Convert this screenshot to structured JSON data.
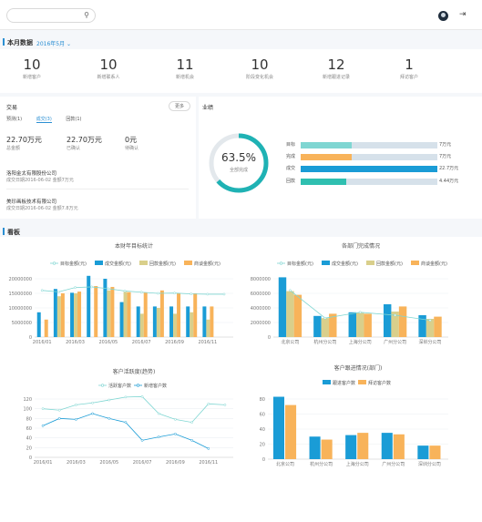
{
  "colors": {
    "blue": "#1a9cd6",
    "teal": "#2fbfb0",
    "orange": "#f8b35a",
    "khaki": "#d9cf8b",
    "lightteal": "#7fd6d2",
    "green": "#61c3a8",
    "grey": "#d6e1ea"
  },
  "header": {
    "search_placeholder": ""
  },
  "month": {
    "title": "本月数据",
    "selected": "2016年5月"
  },
  "stats": [
    {
      "value": "10",
      "label": "新增客户"
    },
    {
      "value": "10",
      "label": "新增联系人"
    },
    {
      "value": "11",
      "label": "新增机会"
    },
    {
      "value": "10",
      "label": "阶段变化机会"
    },
    {
      "value": "12",
      "label": "新增跟进记录"
    },
    {
      "value": "1",
      "label": "拜访客户"
    }
  ],
  "deals": {
    "title": "交易",
    "more": "更多",
    "tabs": [
      "预测(1)",
      "成交(3)",
      "回款(1)"
    ],
    "kpis": [
      {
        "value": "22.70万元",
        "label": "总金额"
      },
      {
        "value": "22.70万元",
        "label": "已确认"
      },
      {
        "value": "0元",
        "label": "待确认"
      }
    ],
    "items": [
      {
        "name": "洛阳金太有限股份公司",
        "detail": "成交日期2016-06-02 金额7万元"
      },
      {
        "name": "美珍画板技术有限公司",
        "detail": "成交日期2016-06-02 金额7.8万元"
      }
    ]
  },
  "goal": {
    "title": "业绩",
    "percent": "63.5%",
    "percent_label": "全部完成",
    "ratio": 0.635,
    "rows": [
      {
        "name": "目标",
        "value": "7万元",
        "ratio": 0.37,
        "color": "#7fd6d2"
      },
      {
        "name": "完成",
        "value": "7万元",
        "ratio": 0.37,
        "color": "#f8b35a"
      },
      {
        "name": "成交",
        "value": "22.7万元",
        "ratio": 1.0,
        "color": "#1a9cd6"
      },
      {
        "name": "回款",
        "value": "4.44万元",
        "ratio": 0.33,
        "color": "#2fbfb0"
      }
    ]
  },
  "board": {
    "title": "看板"
  },
  "chart_data": [
    {
      "type": "bar",
      "title": "本财年目标统计",
      "legend": [
        "目标金额(元)",
        "成交金额(元)",
        "回款金额(元)",
        "商谈金额(元)"
      ],
      "categories": [
        "2016/01",
        "2016/02",
        "2016/03",
        "2016/04",
        "2016/05",
        "2016/06",
        "2016/07",
        "2016/08",
        "2016/09",
        "2016/10",
        "2016/11",
        "2016/12"
      ],
      "xticks": [
        "2016/01",
        "2016/03",
        "2016/05",
        "2016/07",
        "2016/09",
        "2016/11"
      ],
      "yticks": [
        "0",
        "5000000",
        "10000000",
        "15000000",
        "20000000"
      ],
      "ylim": [
        0,
        20000000
      ],
      "line": [
        16000000,
        15500000,
        17000000,
        17200000,
        16600000,
        15800000,
        15400000,
        15000000,
        15100000,
        14800000,
        14700000,
        14700000
      ],
      "series": [
        {
          "name": "成交金额(元)",
          "values": [
            8500000,
            16500000,
            15200000,
            21000000,
            20000000,
            12000000,
            10500000,
            10500000,
            10500000,
            10500000,
            10500000,
            0
          ]
        },
        {
          "name": "回款金额(元)",
          "values": [
            0,
            14000000,
            15000000,
            0,
            16000000,
            15500000,
            8000000,
            10000000,
            8000000,
            8500000,
            6000000,
            0
          ]
        },
        {
          "name": "商谈金额(元)",
          "values": [
            6000000,
            15000000,
            15600000,
            17500000,
            17200000,
            15400000,
            15300000,
            16000000,
            15000000,
            15000000,
            10500000,
            0
          ]
        }
      ]
    },
    {
      "type": "bar",
      "title": "各部门完成情况",
      "legend": [
        "目标金额(元)",
        "成交金额(元)",
        "回款金额(元)",
        "商谈金额(元)"
      ],
      "categories": [
        "北京公司",
        "杭州分公司",
        "上海分公司",
        "广州分公司",
        "深圳分公司"
      ],
      "yticks": [
        "0",
        "2000000",
        "4000000",
        "6000000",
        "8000000"
      ],
      "ylim": [
        0,
        8000000
      ],
      "line": [
        6400000,
        2600000,
        3400000,
        3000000,
        2300000
      ],
      "series": [
        {
          "name": "成交金额(元)",
          "values": [
            8200000,
            2900000,
            3400000,
            4500000,
            3000000
          ]
        },
        {
          "name": "回款金额(元)",
          "values": [
            6300000,
            2600000,
            3300000,
            3500000,
            2500000
          ]
        },
        {
          "name": "商谈金额(元)",
          "values": [
            5800000,
            3200000,
            3200000,
            4200000,
            2800000
          ]
        }
      ]
    },
    {
      "type": "line",
      "title": "客户活跃度(趋势)",
      "legend": [
        "活跃客户数",
        "新增客户数"
      ],
      "categories": [
        "2016/01",
        "2016/02",
        "2016/03",
        "2016/04",
        "2016/05",
        "2016/06",
        "2016/07",
        "2016/08",
        "2016/09",
        "2016/10",
        "2016/11",
        "2016/12"
      ],
      "xticks": [
        "2016/01",
        "2016/03",
        "2016/05",
        "2016/07",
        "2016/09",
        "2016/11"
      ],
      "yticks": [
        "0",
        "20",
        "40",
        "60",
        "80",
        "100",
        "120"
      ],
      "ylim": [
        0,
        120
      ],
      "series": [
        {
          "name": "活跃客户数",
          "values": [
            100,
            97,
            108,
            112,
            118,
            124,
            125,
            90,
            78,
            72,
            110,
            108
          ]
        },
        {
          "name": "新增客户数",
          "values": [
            65,
            80,
            78,
            90,
            80,
            72,
            35,
            42,
            48,
            35,
            18,
            0
          ]
        }
      ]
    },
    {
      "type": "bar",
      "title": "客户跟进情况(部门)",
      "legend": [
        "跟进客户数",
        "拜访客户数"
      ],
      "categories": [
        "北京公司",
        "杭州分公司",
        "上海分公司",
        "广州分公司",
        "深圳分公司"
      ],
      "yticks": [
        "0",
        "20",
        "40",
        "60",
        "80"
      ],
      "ylim": [
        0,
        80
      ],
      "series": [
        {
          "name": "跟进客户数",
          "values": [
            83,
            30,
            32,
            35,
            18
          ]
        },
        {
          "name": "拜访客户数",
          "values": [
            72,
            26,
            35,
            33,
            18
          ]
        }
      ]
    }
  ]
}
